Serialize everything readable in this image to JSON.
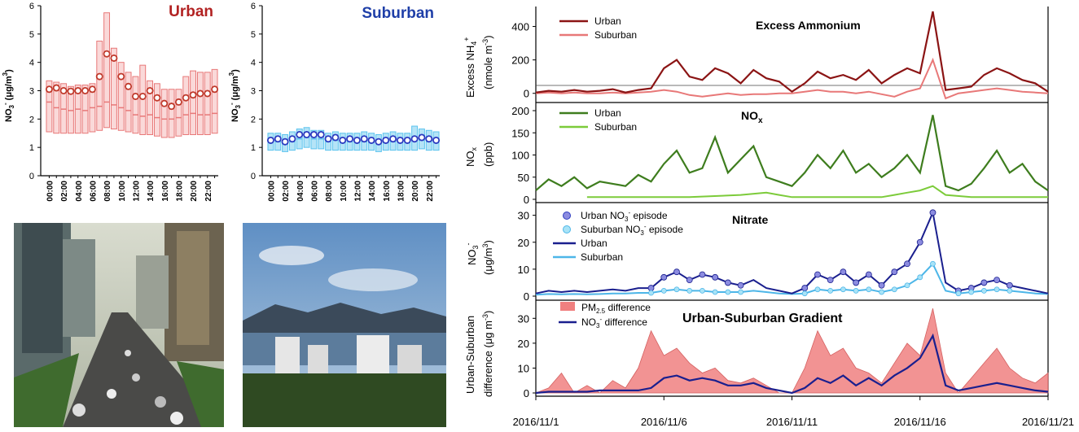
{
  "colors": {
    "urban_dark": "#8B1414",
    "urban_light": "#E87878",
    "nox_urban": "#3E7D1E",
    "nox_suburban": "#7CCB3A",
    "no3_urban": "#1A1F8E",
    "no3_suburban": "#4DB6E8",
    "pm_fill": "#F08080",
    "box_urban": "#F4AAAA",
    "box_suburban": "#5CC3EE",
    "circle_urban": "#C0392B",
    "circle_suburban": "#2B3BC0"
  },
  "chart_data": [
    {
      "type": "box",
      "title": "Urban",
      "ylabel": "NO3- (μg/m3)",
      "ylim": [
        0,
        6
      ],
      "y_ticks": [
        "0",
        "1",
        "2",
        "3",
        "4",
        "5",
        "6"
      ],
      "x_tick_labels": [
        "00:00",
        "02:00",
        "04:00",
        "06:00",
        "08:00",
        "10:00",
        "12:00",
        "14:00",
        "16:00",
        "18:00",
        "20:00",
        "22:00"
      ],
      "hours": [
        0,
        1,
        2,
        3,
        4,
        5,
        6,
        7,
        8,
        9,
        10,
        11,
        12,
        13,
        14,
        15,
        16,
        17,
        18,
        19,
        20,
        21,
        22,
        23
      ],
      "mean": [
        3.05,
        3.1,
        3.0,
        2.98,
        3.0,
        3.0,
        3.05,
        3.5,
        4.3,
        4.15,
        3.5,
        3.15,
        2.8,
        2.8,
        3.0,
        2.75,
        2.55,
        2.45,
        2.6,
        2.75,
        2.85,
        2.9,
        2.9,
        3.05
      ],
      "median": [
        2.6,
        2.4,
        2.35,
        2.3,
        2.35,
        2.3,
        2.4,
        2.45,
        2.6,
        2.5,
        2.4,
        2.3,
        2.15,
        2.1,
        2.15,
        2.05,
        2.0,
        2.0,
        2.05,
        2.15,
        2.2,
        2.15,
        2.15,
        2.2
      ],
      "q1": [
        1.55,
        1.5,
        1.5,
        1.5,
        1.5,
        1.5,
        1.55,
        1.6,
        1.7,
        1.65,
        1.6,
        1.55,
        1.5,
        1.45,
        1.45,
        1.4,
        1.35,
        1.35,
        1.4,
        1.45,
        1.45,
        1.45,
        1.45,
        1.5
      ],
      "q3": [
        3.35,
        3.3,
        3.25,
        3.15,
        3.2,
        3.2,
        3.25,
        4.75,
        5.75,
        4.5,
        4.0,
        3.65,
        3.5,
        3.9,
        3.35,
        3.25,
        3.05,
        3.05,
        3.05,
        3.5,
        3.7,
        3.65,
        3.65,
        3.75
      ]
    },
    {
      "type": "box",
      "title": "Suburban",
      "ylabel": "NO3- (μg/m3)",
      "ylim": [
        0,
        6
      ],
      "y_ticks": [
        "0",
        "1",
        "2",
        "3",
        "4",
        "5",
        "6"
      ],
      "x_tick_labels": [
        "00:00",
        "02:00",
        "04:00",
        "06:00",
        "08:00",
        "10:00",
        "12:00",
        "14:00",
        "16:00",
        "18:00",
        "20:00",
        "22:00"
      ],
      "hours": [
        0,
        1,
        2,
        3,
        4,
        5,
        6,
        7,
        8,
        9,
        10,
        11,
        12,
        13,
        14,
        15,
        16,
        17,
        18,
        19,
        20,
        21,
        22,
        23
      ],
      "mean": [
        1.25,
        1.3,
        1.2,
        1.3,
        1.45,
        1.45,
        1.45,
        1.45,
        1.3,
        1.35,
        1.25,
        1.3,
        1.25,
        1.3,
        1.25,
        1.2,
        1.25,
        1.3,
        1.25,
        1.25,
        1.3,
        1.35,
        1.3,
        1.25
      ],
      "median": [
        1.2,
        1.2,
        1.15,
        1.2,
        1.3,
        1.35,
        1.3,
        1.3,
        1.2,
        1.25,
        1.2,
        1.2,
        1.2,
        1.2,
        1.2,
        1.15,
        1.2,
        1.2,
        1.2,
        1.2,
        1.25,
        1.25,
        1.2,
        1.2
      ],
      "q1": [
        0.9,
        0.9,
        0.85,
        0.9,
        0.95,
        1.0,
        0.95,
        0.95,
        0.9,
        0.9,
        0.9,
        0.9,
        0.9,
        0.9,
        0.9,
        0.85,
        0.9,
        0.9,
        0.9,
        0.9,
        0.9,
        0.95,
        0.9,
        0.9
      ],
      "q3": [
        1.5,
        1.5,
        1.45,
        1.55,
        1.65,
        1.7,
        1.6,
        1.6,
        1.5,
        1.55,
        1.5,
        1.5,
        1.5,
        1.55,
        1.5,
        1.45,
        1.5,
        1.55,
        1.5,
        1.5,
        1.75,
        1.65,
        1.6,
        1.55
      ]
    },
    {
      "type": "line",
      "title": "Excess Ammonium",
      "ylabel_line1": "Excess NH4+",
      "ylabel_line2": "(nmole m-3)",
      "ylim": [
        -50,
        500
      ],
      "y_ticks": [
        0,
        200,
        400
      ],
      "series": [
        {
          "name": "Urban",
          "x": [
            0,
            0.5,
            1,
            1.5,
            2,
            2.5,
            3,
            3.5,
            4,
            4.5,
            5,
            5.5,
            6,
            6.5,
            7,
            7.5,
            8,
            8.5,
            9,
            9.5,
            10,
            10.5,
            11,
            11.5,
            12,
            12.5,
            13,
            13.5,
            14,
            14.5,
            15,
            15.5,
            16,
            16.5,
            17,
            17.5,
            18,
            18.5,
            19,
            19.5,
            20
          ],
          "y": [
            5,
            15,
            10,
            20,
            10,
            15,
            25,
            5,
            20,
            30,
            150,
            200,
            100,
            80,
            150,
            120,
            60,
            140,
            90,
            70,
            10,
            60,
            130,
            90,
            110,
            80,
            140,
            60,
            110,
            150,
            120,
            490,
            20,
            30,
            40,
            110,
            150,
            120,
            80,
            60,
            10
          ]
        },
        {
          "name": "Suburban",
          "x": [
            0,
            0.5,
            1,
            1.5,
            2,
            2.5,
            3,
            3.5,
            4,
            4.5,
            5,
            5.5,
            6,
            6.5,
            7,
            7.5,
            8,
            8.5,
            9,
            9.5,
            10,
            10.5,
            11,
            11.5,
            12,
            12.5,
            13,
            13.5,
            14,
            14.5,
            15,
            15.5,
            16,
            16.5,
            17,
            17.5,
            18,
            18.5,
            19,
            19.5,
            20
          ],
          "y": [
            0,
            5,
            0,
            5,
            0,
            0,
            5,
            0,
            5,
            10,
            20,
            10,
            -10,
            -20,
            -10,
            0,
            -10,
            -5,
            -5,
            0,
            0,
            10,
            20,
            10,
            10,
            0,
            10,
            -5,
            -20,
            10,
            30,
            200,
            -30,
            0,
            10,
            20,
            30,
            20,
            10,
            5,
            0
          ]
        }
      ]
    },
    {
      "type": "line",
      "title": "NOx",
      "ylabel_line1": "NOx",
      "ylabel_line2": "(ppb)",
      "ylim": [
        0,
        200
      ],
      "y_ticks": [
        0,
        50,
        100,
        150,
        200
      ],
      "series": [
        {
          "name": "Urban",
          "x": [
            0,
            0.5,
            1,
            1.5,
            2,
            2.5,
            3,
            3.5,
            4,
            4.5,
            5,
            5.5,
            6,
            6.5,
            7,
            7.5,
            8,
            8.5,
            9,
            9.5,
            10,
            10.5,
            11,
            11.5,
            12,
            12.5,
            13,
            13.5,
            14,
            14.5,
            15,
            15.5,
            16,
            16.5,
            17,
            17.5,
            18,
            18.5,
            19,
            19.5,
            20
          ],
          "y": [
            20,
            45,
            30,
            50,
            25,
            40,
            35,
            30,
            55,
            40,
            80,
            110,
            60,
            70,
            140,
            60,
            90,
            120,
            50,
            40,
            30,
            60,
            100,
            70,
            110,
            60,
            80,
            50,
            70,
            100,
            60,
            190,
            30,
            20,
            35,
            70,
            110,
            60,
            80,
            40,
            20
          ]
        },
        {
          "name": "Suburban",
          "x": [
            2,
            2.5,
            3,
            3.5,
            4,
            4.5,
            5,
            5.5,
            6,
            8,
            9,
            9.5,
            10,
            11,
            12,
            12.5,
            13,
            13.5,
            14,
            14.5,
            15,
            15.5,
            16,
            17,
            18,
            19,
            20
          ],
          "y": [
            5,
            5,
            5,
            5,
            5,
            5,
            5,
            5,
            5,
            10,
            15,
            10,
            5,
            5,
            5,
            5,
            5,
            5,
            10,
            15,
            20,
            30,
            10,
            5,
            5,
            5,
            5
          ]
        }
      ]
    },
    {
      "type": "line",
      "title": "Nitrate",
      "ylabel_line1": "NO3-",
      "ylabel_line2": "(μg/m3)",
      "ylim": [
        0,
        32
      ],
      "y_ticks": [
        0,
        10,
        20,
        30
      ],
      "series": [
        {
          "name": "Urban",
          "x": [
            0,
            0.5,
            1,
            1.5,
            2,
            2.5,
            3,
            3.5,
            4,
            4.5,
            5,
            5.5,
            6,
            6.5,
            7,
            7.5,
            8,
            8.5,
            9,
            9.5,
            10,
            10.5,
            11,
            11.5,
            12,
            12.5,
            13,
            13.5,
            14,
            14.5,
            15,
            15.5,
            16,
            16.5,
            17,
            17.5,
            18,
            18.5,
            19,
            19.5,
            20
          ],
          "y": [
            1,
            2,
            1.5,
            2,
            1.5,
            2,
            2.5,
            2,
            3,
            3,
            7,
            9,
            6,
            8,
            7,
            5,
            4,
            6,
            3,
            2,
            1,
            3,
            8,
            6,
            9,
            5,
            8,
            4,
            9,
            12,
            20,
            31,
            5,
            2,
            3,
            5,
            6,
            4,
            3,
            2,
            1
          ]
        },
        {
          "name": "Suburban",
          "x": [
            0,
            0.5,
            1,
            1.5,
            2,
            2.5,
            3,
            3.5,
            4,
            4.5,
            5,
            5.5,
            6,
            6.5,
            7,
            7.5,
            8,
            8.5,
            9,
            9.5,
            10,
            10.5,
            11,
            11.5,
            12,
            12.5,
            13,
            13.5,
            14,
            14.5,
            15,
            15.5,
            16,
            16.5,
            17,
            17.5,
            18,
            18.5,
            19,
            19.5,
            20
          ],
          "y": [
            0.5,
            0.8,
            0.7,
            0.8,
            0.7,
            0.8,
            1,
            1,
            1.2,
            1.2,
            2,
            2.5,
            2,
            2,
            1.5,
            1.5,
            1.5,
            2,
            1.5,
            1,
            0.8,
            1,
            2.5,
            2,
            2.5,
            2,
            2.5,
            1.5,
            2.5,
            4,
            7,
            12,
            2,
            1,
            1.5,
            2,
            2.5,
            2,
            1.5,
            1,
            0.8
          ]
        }
      ],
      "episodes": [
        {
          "name": "Urban NO3- episode"
        },
        {
          "name": "Suburban NO3- episode"
        }
      ]
    },
    {
      "type": "area",
      "title": "Urban-Suburban Gradient",
      "ylabel_line1": "Urban-Suburban",
      "ylabel_line2": "difference (μg m-3)",
      "ylim": [
        0,
        35
      ],
      "y_ticks": [
        0,
        10,
        20,
        30
      ],
      "x_tick_labels": [
        "2016/11/1",
        "2016/11/6",
        "2016/11/11",
        "2016/11/16",
        "2016/11/21"
      ],
      "series": [
        {
          "name": "PM2.5 difference",
          "x": [
            0,
            0.5,
            1,
            1.5,
            2,
            2.5,
            3,
            3.5,
            4,
            4.5,
            5,
            5.5,
            6,
            6.5,
            7,
            7.5,
            8,
            8.5,
            9,
            9.5,
            10,
            10.5,
            11,
            11.5,
            12,
            12.5,
            13,
            13.5,
            14,
            14.5,
            15,
            15.5,
            16,
            16.5,
            17,
            17.5,
            18,
            18.5,
            19,
            19.5,
            20
          ],
          "y": [
            0,
            2,
            8,
            0,
            3,
            0,
            5,
            2,
            10,
            25,
            15,
            18,
            12,
            8,
            10,
            5,
            4,
            6,
            3,
            0,
            0,
            10,
            25,
            15,
            18,
            10,
            8,
            4,
            12,
            20,
            15,
            34,
            8,
            0,
            6,
            12,
            18,
            10,
            6,
            4,
            8
          ]
        },
        {
          "name": "NO3- difference",
          "x": [
            0,
            0.5,
            1,
            1.5,
            2,
            2.5,
            3,
            3.5,
            4,
            4.5,
            5,
            5.5,
            6,
            6.5,
            7,
            7.5,
            8,
            8.5,
            9,
            9.5,
            10,
            10.5,
            11,
            11.5,
            12,
            12.5,
            13,
            13.5,
            14,
            14.5,
            15,
            15.5,
            16,
            16.5,
            17,
            17.5,
            18,
            18.5,
            19,
            19.5,
            20
          ],
          "y": [
            0,
            0.5,
            0.5,
            0.5,
            0.5,
            1,
            1,
            1,
            1,
            2,
            6,
            7,
            5,
            6,
            5,
            3,
            3,
            4,
            2,
            1,
            0,
            2,
            6,
            4,
            7,
            3,
            6,
            3,
            7,
            10,
            14,
            23,
            3,
            1,
            2,
            3,
            4,
            3,
            2,
            1,
            0.5
          ]
        }
      ]
    }
  ],
  "text": {
    "urban_title": "Urban",
    "suburban_title": "Suburban",
    "box_ylabel_1": "NO",
    "box_ylabel_sub": "3",
    "box_ylabel_sup": "-",
    "box_ylabel_2": "(μg/m",
    "box_ylabel_sup2": "3",
    "box_ylabel_3": ")",
    "nh4_title": "Excess Ammonium",
    "nox_title": "NO",
    "nox_title_sub": "x",
    "nitrate_title": "Nitrate",
    "grad_title": "Urban-Suburban Gradient",
    "leg_urban": "Urban",
    "leg_suburban": "Suburban",
    "leg_urban_ep": "Urban NO",
    "leg_urban_ep_sub": "3",
    "leg_urban_ep_sup": "-",
    "leg_urban_ep_2": " episode",
    "leg_sub_ep": "Suburban NO",
    "leg_sub_ep_sub": "3",
    "leg_sub_ep_sup": "-",
    "leg_sub_ep_2": " episode",
    "leg_pm": "PM",
    "leg_pm_sub": "2.5",
    "leg_pm_2": " difference",
    "leg_no3": "NO",
    "leg_no3_sub": "3",
    "leg_no3_sup": "-",
    "leg_no3_2": " difference"
  },
  "photos": {
    "urban": "urban-street-photo",
    "suburban": "suburban-coast-photo"
  }
}
